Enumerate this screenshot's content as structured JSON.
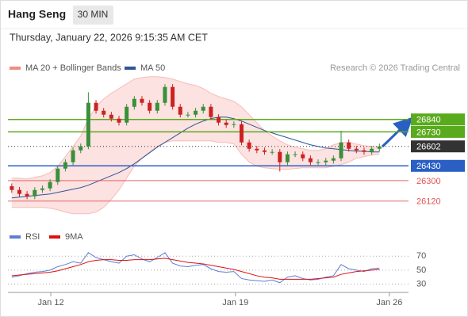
{
  "header": {
    "title": "Hang Seng",
    "timeframe": "30 MIN",
    "timestamp": "Thursday, January 22, 2026 9:15:35 AM CET",
    "copyright": "Research © 2026 Trading Central"
  },
  "chart_data": [
    {
      "type": "candlestick",
      "legend": [
        {
          "name": "MA 20 + Bollinger Bands",
          "color": "#f28b82"
        },
        {
          "name": "MA 50",
          "color": "#2f5597"
        }
      ],
      "up_color": "#3a8f3a",
      "down_color": "#cc2222",
      "x": [
        0,
        1,
        2,
        3,
        4,
        5,
        6,
        7,
        8,
        9,
        10,
        11,
        12,
        13,
        14,
        15,
        16,
        17,
        18,
        19,
        20,
        21,
        22,
        23,
        24,
        25,
        26,
        27,
        28,
        29,
        30,
        31,
        32,
        33,
        34,
        35,
        36,
        37,
        38,
        39,
        40,
        41,
        42,
        43,
        44,
        45,
        46,
        47,
        48
      ],
      "open": [
        26250,
        26217,
        26182,
        26161,
        26217,
        26231,
        26287,
        26406,
        26462,
        26567,
        26602,
        26987,
        26917,
        26882,
        26847,
        26812,
        26952,
        27022,
        26987,
        26917,
        26987,
        27127,
        26952,
        26882,
        26882,
        26917,
        26952,
        26861,
        26812,
        26791,
        26798,
        26637,
        26581,
        26567,
        26553,
        26553,
        26462,
        26532,
        26532,
        26497,
        26462,
        26462,
        26476,
        26497,
        26637,
        26581,
        26567,
        26553,
        26581
      ],
      "high": [
        26275,
        26242,
        26207,
        26242,
        26256,
        26312,
        26431,
        26487,
        26592,
        26627,
        27080,
        27012,
        26942,
        26907,
        26872,
        26977,
        27047,
        27047,
        27012,
        27012,
        27152,
        27152,
        26977,
        26907,
        26942,
        26977,
        26977,
        26886,
        26837,
        26823,
        26823,
        26662,
        26606,
        26592,
        26578,
        26578,
        26557,
        26557,
        26557,
        26522,
        26487,
        26501,
        26522,
        26740,
        26662,
        26606,
        26592,
        26606,
        26627
      ],
      "low": [
        26192,
        26157,
        26136,
        26136,
        26192,
        26206,
        26262,
        26381,
        26437,
        26542,
        26577,
        26892,
        26857,
        26822,
        26787,
        26787,
        26927,
        26962,
        26892,
        26892,
        26962,
        26927,
        26857,
        26857,
        26857,
        26892,
        26836,
        26787,
        26766,
        26766,
        26612,
        26556,
        26542,
        26528,
        26528,
        26380,
        26437,
        26507,
        26472,
        26437,
        26437,
        26437,
        26451,
        26472,
        26556,
        26542,
        26528,
        26528,
        26556
      ],
      "close": [
        26217,
        26182,
        26161,
        26217,
        26231,
        26287,
        26406,
        26462,
        26567,
        26602,
        26987,
        26917,
        26882,
        26847,
        26812,
        26952,
        27022,
        26987,
        26917,
        26987,
        27127,
        26952,
        26882,
        26882,
        26917,
        26952,
        26861,
        26812,
        26791,
        26798,
        26637,
        26581,
        26567,
        26553,
        26553,
        26462,
        26532,
        26532,
        26497,
        26462,
        26462,
        26476,
        26497,
        26637,
        26581,
        26567,
        26553,
        26581,
        26602
      ],
      "band_upper": [
        26322,
        26322,
        26315,
        26329,
        26343,
        26371,
        26427,
        26511,
        26602,
        26693,
        26847,
        26952,
        27022,
        27071,
        27113,
        27155,
        27197,
        27211,
        27218,
        27218,
        27211,
        27197,
        27176,
        27155,
        27141,
        27113,
        27071,
        27043,
        27022,
        27001,
        26952,
        26882,
        26812,
        26742,
        26693,
        26651,
        26616,
        26595,
        26581,
        26567,
        26567,
        26581,
        26616,
        26637,
        26637,
        26623,
        26609,
        26602,
        26595
      ],
      "band_lower": [
        26063,
        26063,
        26063,
        26063,
        26063,
        26056,
        26042,
        26021,
        26007,
        26007,
        26007,
        26021,
        26063,
        26133,
        26217,
        26322,
        26427,
        26497,
        26553,
        26602,
        26637,
        26651,
        26651,
        26651,
        26651,
        26651,
        26651,
        26637,
        26637,
        26623,
        26532,
        26462,
        26427,
        26413,
        26406,
        26399,
        26399,
        26406,
        26413,
        26413,
        26413,
        26413,
        26427,
        26441,
        26462,
        26497,
        26511,
        26525,
        26532
      ],
      "ma50": [
        26147,
        26154,
        26161,
        26168,
        26175,
        26182,
        26196,
        26210,
        26224,
        26238,
        26259,
        26287,
        26315,
        26343,
        26371,
        26406,
        26448,
        26497,
        26546,
        26595,
        26637,
        26679,
        26721,
        26763,
        26798,
        26826,
        26847,
        26861,
        26861,
        26847,
        26826,
        26798,
        26770,
        26742,
        26721,
        26700,
        26679,
        26658,
        26637,
        26616,
        26602,
        26588,
        26581,
        26574,
        26567,
        26560,
        26560,
        26553,
        26553
      ],
      "levels": [
        {
          "value": 26840,
          "color": "#5aaa1e",
          "style": "solid",
          "label_style": "box"
        },
        {
          "value": 26730,
          "color": "#5aaa1e",
          "style": "solid",
          "label_style": "box"
        },
        {
          "value": 26602,
          "color": "#333333",
          "style": "dotted",
          "label_style": "box"
        },
        {
          "value": 26430,
          "color": "#2a5fc4",
          "style": "solid",
          "label_style": "box"
        },
        {
          "value": 26300,
          "color": "#e05555",
          "style": "solid",
          "label_style": "text"
        },
        {
          "value": 26120,
          "color": "#e05555",
          "style": "solid",
          "label_style": "text"
        }
      ],
      "xlim": [
        -0.5,
        51.8
      ],
      "ylim": [
        25970,
        27230
      ]
    },
    {
      "type": "line",
      "series": [
        {
          "name": "RSI",
          "color": "#5b7fd6",
          "values": [
            40,
            42,
            45,
            47,
            48,
            50,
            55,
            58,
            62,
            60,
            75,
            68,
            65,
            62,
            60,
            70,
            72,
            66,
            62,
            68,
            75,
            60,
            56,
            55,
            57,
            58,
            52,
            48,
            47,
            48,
            38,
            36,
            35,
            34,
            36,
            32,
            40,
            42,
            38,
            36,
            37,
            40,
            42,
            58,
            52,
            50,
            48,
            52,
            53
          ]
        },
        {
          "name": "9MA",
          "color": "#dd1111",
          "values": [
            42,
            43,
            44,
            45,
            46,
            47,
            49,
            52,
            55,
            58,
            62,
            64,
            65,
            65,
            64,
            64,
            65,
            65,
            65,
            66,
            67,
            65,
            63,
            61,
            60,
            59,
            57,
            55,
            53,
            51,
            48,
            45,
            42,
            40,
            39,
            37,
            37,
            37,
            37,
            37,
            38,
            39,
            40,
            44,
            46,
            48,
            49,
            50,
            51
          ]
        }
      ],
      "x": [
        0,
        1,
        2,
        3,
        4,
        5,
        6,
        7,
        8,
        9,
        10,
        11,
        12,
        13,
        14,
        15,
        16,
        17,
        18,
        19,
        20,
        21,
        22,
        23,
        24,
        25,
        26,
        27,
        28,
        29,
        30,
        31,
        32,
        33,
        34,
        35,
        36,
        37,
        38,
        39,
        40,
        41,
        42,
        43,
        44,
        45,
        46,
        47,
        48
      ],
      "xlim": [
        -0.5,
        51.8
      ],
      "ylim": [
        17,
        85
      ],
      "yticks": [
        70,
        50,
        30
      ],
      "xticks": [
        {
          "value": 5.1,
          "label": "Jan 12"
        },
        {
          "value": 29.2,
          "label": "Jan 19"
        },
        {
          "value": 49.3,
          "label": "Jan 26"
        }
      ]
    }
  ]
}
